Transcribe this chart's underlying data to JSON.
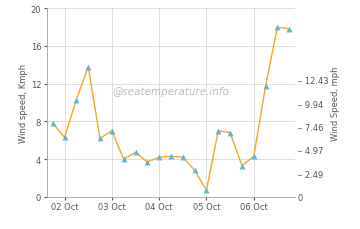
{
  "x_values": [
    0,
    1,
    2,
    3,
    4,
    5,
    6,
    7,
    8,
    9,
    10,
    11,
    12,
    13,
    14,
    15,
    16,
    17,
    18,
    19,
    20
  ],
  "y_values": [
    7.8,
    6.3,
    10.3,
    13.8,
    6.2,
    7.0,
    4.0,
    4.7,
    3.7,
    4.2,
    4.3,
    4.2,
    2.8,
    0.7,
    7.0,
    6.8,
    3.3,
    4.3,
    11.8,
    18.0,
    17.8
  ],
  "x_tick_positions": [
    1,
    5,
    9,
    13,
    17
  ],
  "x_tick_labels": [
    "02 Oct",
    "03 Oct",
    "04 Oct",
    "05 Oct",
    "06 Oct"
  ],
  "ylim": [
    0,
    20
  ],
  "y_left_ticks": [
    0,
    4,
    8,
    12,
    16,
    20
  ],
  "y2_ticks": [
    0,
    2.49,
    4.97,
    7.46,
    9.94,
    12.43
  ],
  "y2_labels": [
    "0",
    "2.49",
    "4.97",
    "7.46",
    "9.94",
    "12.43"
  ],
  "ylabel_left": "Wind speed, Kmph",
  "ylabel_right": "Wind Speed, mph",
  "line_color": "#f5a623",
  "marker_color": "#5bb8d4",
  "watermark": "@seatemperature.info",
  "bg_color": "#ffffff",
  "plot_bg_color": "#ffffff",
  "grid_color": "#d0d0d0"
}
